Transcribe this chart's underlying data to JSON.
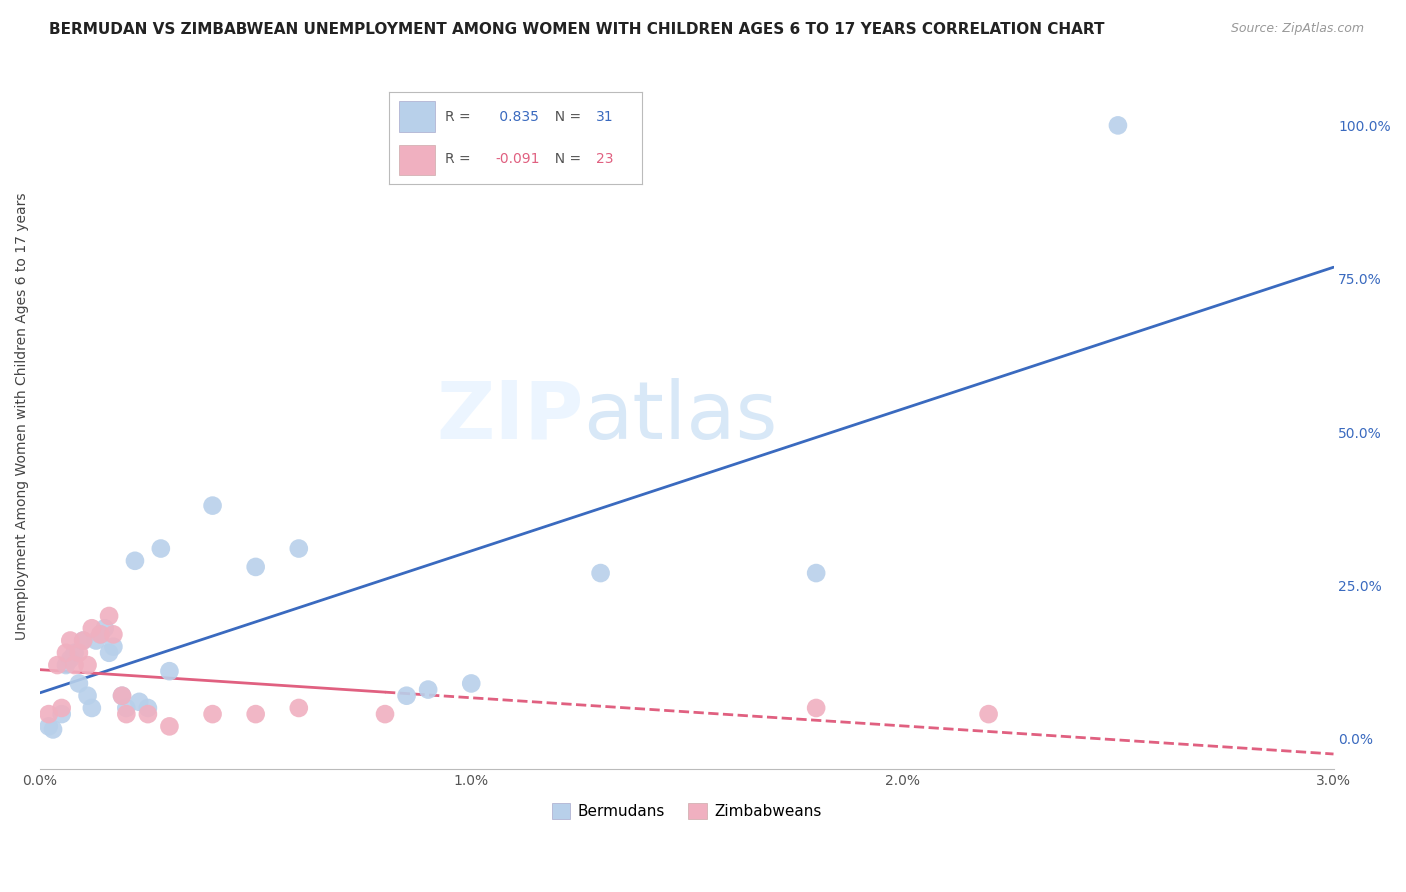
{
  "title": "BERMUDAN VS ZIMBABWEAN UNEMPLOYMENT AMONG WOMEN WITH CHILDREN AGES 6 TO 17 YEARS CORRELATION CHART",
  "source": "Source: ZipAtlas.com",
  "ylabel": "Unemployment Among Women with Children Ages 6 to 17 years",
  "xlim": [
    0.0,
    0.03
  ],
  "ylim": [
    -0.05,
    1.1
  ],
  "x_ticks": [
    0.0,
    0.005,
    0.01,
    0.015,
    0.02,
    0.025,
    0.03
  ],
  "x_tick_labels": [
    "0.0%",
    "",
    "1.0%",
    "",
    "2.0%",
    "",
    "3.0%"
  ],
  "y_ticks": [
    0.0,
    0.25,
    0.5,
    0.75,
    1.0
  ],
  "y_tick_labels": [
    "0.0%",
    "25.0%",
    "50.0%",
    "75.0%",
    "100.0%"
  ],
  "bermuda_R": 0.835,
  "bermuda_N": 31,
  "zimbabwe_R": -0.091,
  "zimbabwe_N": 23,
  "bermuda_color": "#b8d0ea",
  "zimbabwe_color": "#f0b0c0",
  "bermuda_line_color": "#3a6abf",
  "zimbabwe_line_color": "#e06080",
  "watermark_zip": "ZIP",
  "watermark_atlas": "atlas",
  "bermuda_x": [
    0.0002,
    0.0003,
    0.0005,
    0.0006,
    0.0007,
    0.0008,
    0.0009,
    0.001,
    0.0011,
    0.0012,
    0.0013,
    0.0014,
    0.0015,
    0.0016,
    0.0017,
    0.0019,
    0.002,
    0.0022,
    0.0023,
    0.0025,
    0.0028,
    0.003,
    0.004,
    0.005,
    0.006,
    0.0085,
    0.009,
    0.01,
    0.013,
    0.018,
    0.025
  ],
  "bermuda_y": [
    0.02,
    0.015,
    0.04,
    0.12,
    0.13,
    0.14,
    0.09,
    0.16,
    0.07,
    0.05,
    0.16,
    0.17,
    0.18,
    0.14,
    0.15,
    0.07,
    0.05,
    0.29,
    0.06,
    0.05,
    0.31,
    0.11,
    0.38,
    0.28,
    0.31,
    0.07,
    0.08,
    0.09,
    0.27,
    0.27,
    1.0
  ],
  "zimbabwe_x": [
    0.0002,
    0.0004,
    0.0005,
    0.0006,
    0.0007,
    0.0008,
    0.0009,
    0.001,
    0.0011,
    0.0012,
    0.0014,
    0.0016,
    0.0017,
    0.0019,
    0.002,
    0.0025,
    0.003,
    0.004,
    0.005,
    0.006,
    0.008,
    0.018,
    0.022
  ],
  "zimbabwe_y": [
    0.04,
    0.12,
    0.05,
    0.14,
    0.16,
    0.12,
    0.14,
    0.16,
    0.12,
    0.18,
    0.17,
    0.2,
    0.17,
    0.07,
    0.04,
    0.04,
    0.02,
    0.04,
    0.04,
    0.05,
    0.04,
    0.05,
    0.04
  ],
  "background_color": "#ffffff",
  "grid_color": "#d0d0d0",
  "title_fontsize": 11,
  "source_fontsize": 9,
  "tick_fontsize": 10,
  "ylabel_fontsize": 10
}
